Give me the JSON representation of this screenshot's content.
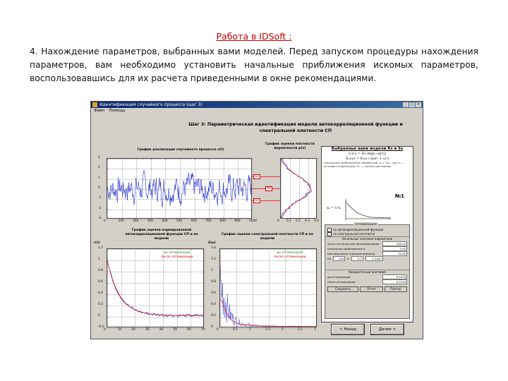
{
  "slide": {
    "title": "Работа в IDSoft :",
    "paragraph": "4. Нахождение параметров, выбранных вами моделей. Перед запуском процедуры нахождения параметров, вам необходимо установить начальные приближения искомых параметров, воспользовавшись для их расчета приведенными в окне рекомендациями."
  },
  "window": {
    "title": "Идентификация случайного процесса (шаг 3)",
    "menu": [
      "Файл",
      "Помощь"
    ],
    "step_title": "Шаг 3: Параметрическая идентификация модели автокорреляционной функции и спектральной плотности СП",
    "realization_title": "График реализации случайного процесса x(t)",
    "density_title": "График оценки плотности вероятности p(x)",
    "acf_title": "График оценки нормированной автокорреляционной функции СП и ее модели",
    "spec_title": "График оценки спектральной плотности СП и ее модели",
    "acf_ylabel": "r(τ)",
    "spec_ylabel": "S(ω)",
    "legend_estimate": "до оптимизации",
    "legend_model": "после оптимизации",
    "tags": {
      "top": "Gx",
      "mid": "Mx",
      "bottom": "Gx"
    },
    "model_panel": {
      "heading": "Выбранные вами модели Rx и Sx",
      "formula1": "rₓ(τ) = Dₓ·exp(−α|τ|)",
      "formula2": "Sₓ(ω) = Dₓα / π(α² + ω²)",
      "note": "Начальные приближения параметров: α ≈ 1/τₖ, где τₖ — интервал корреляции; Dₓ — оценка дисперсии.",
      "badge": "№1",
      "formula3": "α₀ = 1/τₖ",
      "opt_caption": "ОПТИМИЗАЦИЯ",
      "checks": [
        "по автокорреляционной функции",
        "по спектральной плотности"
      ],
      "subheading": "Начальные значения параметров",
      "rows": [
        {
          "label": "число отсчетов для автокорреляции",
          "value": "100.00"
        },
        {
          "label": "начальное приближение α",
          "value": "2.00"
        },
        {
          "label": "максимальное значение времени",
          "value": "70.00"
        }
      ],
      "param_row": [
        "Dx",
        "100",
        "α",
        "0.3",
        "0.1400"
      ],
      "sub2": "Квадратичный критерий",
      "crit_rows": [
        {
          "label": "до оптимизации",
          "value": "0.1076"
        },
        {
          "label": "после оптимизации",
          "value": "0.1076"
        }
      ],
      "buttons": [
        "Сохранить",
        "Отчет",
        "Повтор"
      ]
    },
    "nav": {
      "back": "< Назад",
      "next": "Далее >"
    }
  },
  "ticks": {
    "real_x": [
      "0",
      "100",
      "200",
      "300",
      "400",
      "500",
      "600",
      "700",
      "800",
      "900",
      "1000"
    ],
    "real_y": [
      "3",
      "2",
      "1",
      "0",
      "-1",
      "-2",
      "-3"
    ],
    "dens_x": [
      "0",
      "0.1",
      "0.2",
      "0.3",
      "0.4"
    ],
    "acf_x": [
      "0",
      "10",
      "20",
      "30",
      "40",
      "50",
      "60",
      "70"
    ],
    "acf_y": [
      "1.2",
      "1",
      "0.8",
      "0.6",
      "0.4",
      "0.2",
      "0",
      "-0.2"
    ],
    "spec_x": [
      "0",
      "0.5",
      "1",
      "1.5",
      "2",
      "2.5",
      "3"
    ],
    "spec_y": [
      "1.4",
      "1.2",
      "1",
      "0.8",
      "0.6",
      "0.4",
      "0.2",
      "0"
    ]
  },
  "colors": {
    "signal": "#2233cc",
    "model": "#dd2222",
    "titlebar": "#0a246a"
  }
}
